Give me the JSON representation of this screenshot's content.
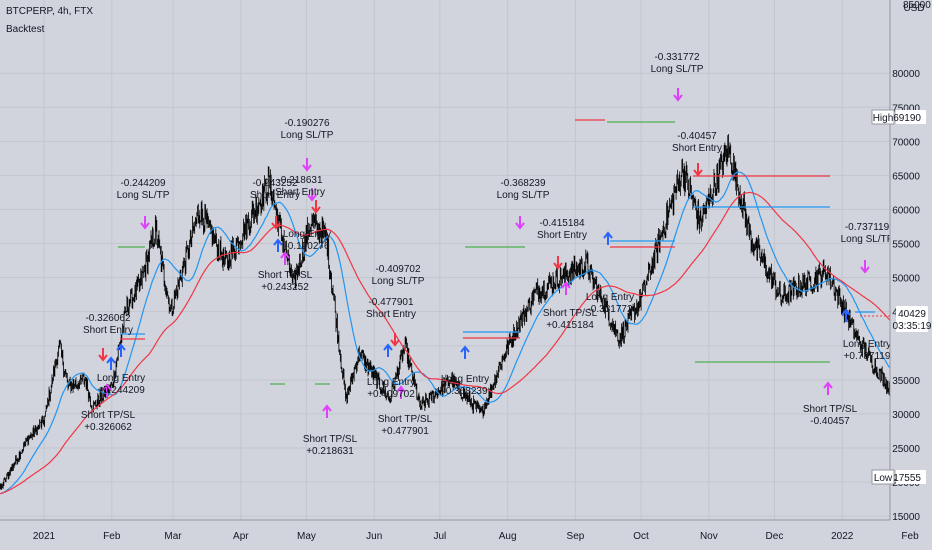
{
  "header": {
    "symbol": "BTCPERP, 4h, FTX",
    "indicator": "Backtest"
  },
  "axis": {
    "currency": "USD",
    "price_labels": [
      "80000",
      "75000",
      "70000",
      "65000",
      "60000",
      "55000",
      "50000",
      "45000",
      "35000",
      "30000",
      "25000",
      "20000",
      "15000"
    ],
    "high_tag": "High",
    "high_value": "69190",
    "low_tag": "Low",
    "low_value": "17555",
    "last_price": "40429",
    "countdown": "03:35:19",
    "top_cut": "85000"
  },
  "x_labels": [
    "2021",
    "Feb",
    "Mar",
    "Apr",
    "May",
    "Jun",
    "Jul",
    "Aug",
    "Sep",
    "Oct",
    "Nov",
    "Dec",
    "2022",
    "Feb"
  ],
  "annotations": [
    {
      "lines": [
        "-0.326062",
        "Short Entry"
      ]
    },
    {
      "lines": [
        "Long Entry",
        "+0.244209"
      ]
    },
    {
      "lines": [
        "Short TP/SL",
        "+0.326062"
      ]
    },
    {
      "lines": [
        "-0.244209",
        "Long SL/TP"
      ]
    },
    {
      "lines": [
        "-0.190276",
        "Long SL/TP"
      ]
    },
    {
      "lines": [
        "-0.243252",
        "Short Entry"
      ]
    },
    {
      "lines": [
        "-0.218631",
        "Short Entry"
      ]
    },
    {
      "lines": [
        "Long Entry",
        "-0.190276"
      ]
    },
    {
      "lines": [
        "Short TP/SL",
        "+0.243252"
      ]
    },
    {
      "lines": [
        "Short TP/SL",
        "+0.218631"
      ]
    },
    {
      "lines": [
        "-0.409702",
        "Long SL/TP"
      ]
    },
    {
      "lines": [
        "-0.477901",
        "Short Entry"
      ]
    },
    {
      "lines": [
        "Long Entry",
        "+0.409702"
      ]
    },
    {
      "lines": [
        "Short TP/SL",
        "+0.477901"
      ]
    },
    {
      "lines": [
        "Long Entry",
        "-0.368239"
      ]
    },
    {
      "lines": [
        "-0.368239",
        "Long SL/TP"
      ]
    },
    {
      "lines": [
        "-0.415184",
        "Short Entry"
      ]
    },
    {
      "lines": [
        "Short TP/SL",
        "+0.415184"
      ]
    },
    {
      "lines": [
        "Long Entry",
        "-0.331772"
      ]
    },
    {
      "lines": [
        "-0.331772",
        "Long SL/TP"
      ]
    },
    {
      "lines": [
        "-0.40457",
        "Short Entry"
      ]
    },
    {
      "lines": [
        "Short TP/SL",
        "-0.40457"
      ]
    },
    {
      "lines": [
        "-0.737119",
        "Long SL/TP"
      ]
    },
    {
      "lines": [
        "Long Entry",
        "+0.737119"
      ]
    }
  ],
  "colors": {
    "background": "#d1d4dc",
    "candles": "#000000",
    "fast_ma": "#2196f3",
    "slow_ma": "#f23645",
    "long_arrow": "#2962ff",
    "short_arrow": "#f23645",
    "exit_arrow": "#e040fb",
    "tp_line": "#4caf50"
  },
  "chart_data": {
    "type": "candlestick",
    "ylim": [
      15000,
      85000
    ],
    "price_path": [
      [
        "2021-01-01",
        29000
      ],
      [
        "2021-01-08",
        40000
      ],
      [
        "2021-01-12",
        34000
      ],
      [
        "2021-01-20",
        35000
      ],
      [
        "2021-01-23",
        31000
      ],
      [
        "2021-02-01",
        34000
      ],
      [
        "2021-02-08",
        46000
      ],
      [
        "2021-02-14",
        49000
      ],
      [
        "2021-02-21",
        57000
      ],
      [
        "2021-02-28",
        45000
      ],
      [
        "2021-03-13",
        60000
      ],
      [
        "2021-03-25",
        52000
      ],
      [
        "2021-04-14",
        64000
      ],
      [
        "2021-04-25",
        49000
      ],
      [
        "2021-05-03",
        58000
      ],
      [
        "2021-05-10",
        56000
      ],
      [
        "2021-05-19",
        32000
      ],
      [
        "2021-05-25",
        39000
      ],
      [
        "2021-06-08",
        32000
      ],
      [
        "2021-06-15",
        40000
      ],
      [
        "2021-06-22",
        31000
      ],
      [
        "2021-07-06",
        35000
      ],
      [
        "2021-07-20",
        30000
      ],
      [
        "2021-08-01",
        40000
      ],
      [
        "2021-08-14",
        48000
      ],
      [
        "2021-09-06",
        52000
      ],
      [
        "2021-09-21",
        41000
      ],
      [
        "2021-10-01",
        47000
      ],
      [
        "2021-10-20",
        66000
      ],
      [
        "2021-10-28",
        58000
      ],
      [
        "2021-11-10",
        69000
      ],
      [
        "2021-11-20",
        56000
      ],
      [
        "2021-12-04",
        47000
      ],
      [
        "2021-12-25",
        51000
      ],
      [
        "2022-01-08",
        41000
      ],
      [
        "2022-01-24",
        33000
      ],
      [
        "2022-02-10",
        45000
      ],
      [
        "2022-02-19",
        40429
      ]
    ],
    "annotation_values": [
      "-0.326062",
      "+0.244209",
      "+0.326062",
      "-0.244209",
      "-0.190276",
      "-0.243252",
      "-0.218631",
      "+0.243252",
      "+0.218631",
      "-0.409702",
      "-0.477901",
      "+0.409702",
      "+0.477901",
      "-0.368239",
      "-0.415184",
      "+0.415184",
      "-0.331772",
      "-0.40457",
      "-0.737119",
      "+0.737119"
    ],
    "high": 69190,
    "low": 17555,
    "last": 40429
  }
}
